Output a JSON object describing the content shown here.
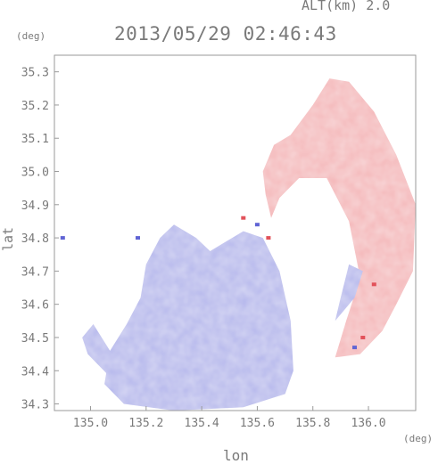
{
  "header": {
    "altitude": "ALT(km) 2.0",
    "timestamp": "2013/05/29 02:46:43",
    "unit_top": "(deg)",
    "unit_bottom": "(deg)"
  },
  "chart_data": {
    "type": "heatmap",
    "title": "2013/05/29 02:46:43",
    "subtitle": "ALT(km) 2.0",
    "xlabel": "lon",
    "ylabel": "lat",
    "xunit": "(deg)",
    "yunit": "(deg)",
    "xlim": [
      134.87,
      136.17
    ],
    "ylim": [
      34.28,
      35.35
    ],
    "xticks": [
      "135.0",
      "135.2",
      "135.4",
      "135.6",
      "135.8",
      "136.0"
    ],
    "yticks": [
      "34.3",
      "34.4",
      "34.5",
      "34.6",
      "34.7",
      "34.8",
      "34.9",
      "35.0",
      "35.1",
      "35.2",
      "35.3"
    ],
    "grid": false,
    "colors": {
      "receding": "#f4b7b9",
      "approaching": "#b6b8ec",
      "strong_red": "#e2525a",
      "strong_blue": "#6064d4"
    },
    "regions": [
      {
        "name": "northeast-receding",
        "sign": "positive",
        "polygon": [
          [
            135.72,
            35.11
          ],
          [
            135.8,
            35.2
          ],
          [
            135.86,
            35.28
          ],
          [
            135.93,
            35.27
          ],
          [
            136.02,
            35.18
          ],
          [
            136.1,
            35.05
          ],
          [
            136.17,
            34.9
          ],
          [
            136.16,
            34.7
          ],
          [
            136.1,
            34.6
          ],
          [
            136.05,
            34.52
          ],
          [
            135.97,
            34.45
          ],
          [
            135.88,
            34.44
          ],
          [
            135.92,
            34.55
          ],
          [
            135.97,
            34.68
          ],
          [
            135.93,
            34.85
          ],
          [
            135.85,
            34.98
          ],
          [
            135.75,
            34.98
          ],
          [
            135.68,
            34.92
          ],
          [
            135.65,
            34.86
          ],
          [
            135.63,
            34.93
          ],
          [
            135.62,
            35.0
          ],
          [
            135.66,
            35.08
          ]
        ]
      },
      {
        "name": "southwest-approaching",
        "sign": "negative",
        "polygon": [
          [
            135.05,
            34.36
          ],
          [
            135.12,
            34.3
          ],
          [
            135.3,
            34.28
          ],
          [
            135.55,
            34.29
          ],
          [
            135.7,
            34.33
          ],
          [
            135.73,
            34.4
          ],
          [
            135.72,
            34.55
          ],
          [
            135.68,
            34.7
          ],
          [
            135.62,
            34.8
          ],
          [
            135.55,
            34.82
          ],
          [
            135.43,
            34.76
          ],
          [
            135.38,
            34.8
          ],
          [
            135.3,
            34.84
          ],
          [
            135.25,
            34.8
          ],
          [
            135.2,
            34.72
          ],
          [
            135.18,
            34.62
          ],
          [
            135.13,
            34.54
          ],
          [
            135.07,
            34.46
          ]
        ]
      },
      {
        "name": "west-fragment",
        "sign": "negative",
        "polygon": [
          [
            134.97,
            34.5
          ],
          [
            135.01,
            34.54
          ],
          [
            135.07,
            34.46
          ],
          [
            135.11,
            34.42
          ],
          [
            135.06,
            34.39
          ],
          [
            134.99,
            34.45
          ]
        ]
      },
      {
        "name": "east-approaching-strip",
        "sign": "negative",
        "polygon": [
          [
            135.88,
            34.55
          ],
          [
            135.95,
            34.62
          ],
          [
            135.98,
            34.7
          ],
          [
            135.93,
            34.72
          ],
          [
            135.9,
            34.62
          ]
        ]
      }
    ],
    "speckles": [
      {
        "lon": 136.02,
        "lat": 34.66,
        "sign": "positive"
      },
      {
        "lon": 135.98,
        "lat": 34.5,
        "sign": "positive"
      },
      {
        "lon": 135.95,
        "lat": 34.47,
        "sign": "negative"
      },
      {
        "lon": 135.64,
        "lat": 34.8,
        "sign": "positive"
      },
      {
        "lon": 135.6,
        "lat": 34.84,
        "sign": "negative"
      },
      {
        "lon": 135.17,
        "lat": 34.8,
        "sign": "negative"
      },
      {
        "lon": 134.9,
        "lat": 34.8,
        "sign": "negative"
      },
      {
        "lon": 135.55,
        "lat": 34.86,
        "sign": "positive"
      }
    ]
  }
}
